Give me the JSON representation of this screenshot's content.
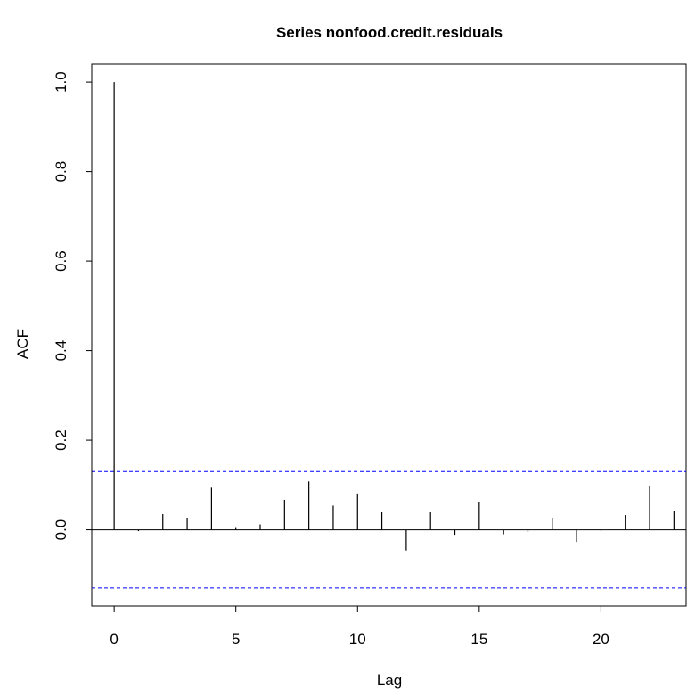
{
  "chart_data": {
    "type": "bar",
    "title": "Series  nonfood.credit.residuals",
    "xlabel": "Lag",
    "ylabel": "ACF",
    "xlim": [
      -0.92,
      23.5
    ],
    "ylim": [
      -0.17,
      1.04
    ],
    "xticks": [
      0,
      5,
      10,
      15,
      20
    ],
    "yticks": [
      0.0,
      0.2,
      0.4,
      0.6,
      0.8,
      1.0
    ],
    "x": [
      0,
      1,
      2,
      3,
      4,
      5,
      6,
      7,
      8,
      9,
      10,
      11,
      12,
      13,
      14,
      15,
      16,
      17,
      18,
      19,
      20,
      21,
      22,
      23
    ],
    "values": [
      1.0,
      -0.003,
      0.035,
      0.027,
      0.094,
      0.004,
      0.012,
      0.067,
      0.108,
      0.054,
      0.081,
      0.039,
      -0.046,
      0.039,
      -0.013,
      0.062,
      -0.01,
      -0.005,
      0.027,
      -0.027,
      -0.002,
      0.033,
      0.097,
      0.041
    ],
    "confidence_bound": 0.13,
    "zero_line": true,
    "grid": false,
    "colors": {
      "bars": "#000000",
      "bounds": "#0000ff",
      "axis": "#000000"
    }
  }
}
